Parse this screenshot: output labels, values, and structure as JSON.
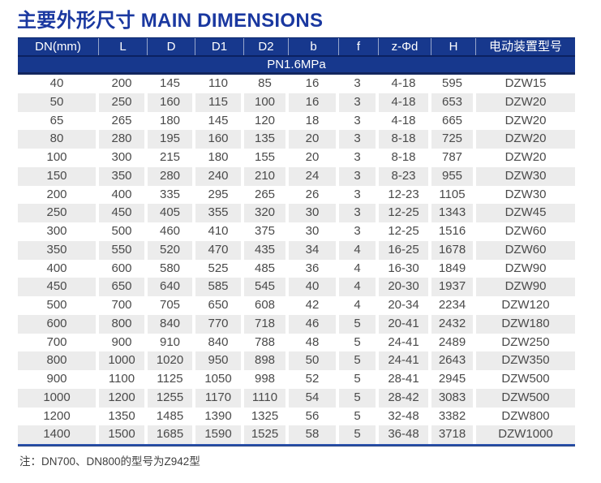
{
  "title": "主要外形尺寸 MAIN DIMENSIONS",
  "table": {
    "columns": [
      "DN(mm)",
      "L",
      "D",
      "D1",
      "D2",
      "b",
      "f",
      "z-Φd",
      "H",
      "电动装置型号"
    ],
    "subheader": "PN1.6MPa",
    "rows": [
      [
        "40",
        "200",
        "145",
        "110",
        "85",
        "16",
        "3",
        "4-18",
        "595",
        "DZW15"
      ],
      [
        "50",
        "250",
        "160",
        "115",
        "100",
        "16",
        "3",
        "4-18",
        "653",
        "DZW20"
      ],
      [
        "65",
        "265",
        "180",
        "145",
        "120",
        "18",
        "3",
        "4-18",
        "665",
        "DZW20"
      ],
      [
        "80",
        "280",
        "195",
        "160",
        "135",
        "20",
        "3",
        "8-18",
        "725",
        "DZW20"
      ],
      [
        "100",
        "300",
        "215",
        "180",
        "155",
        "20",
        "3",
        "8-18",
        "787",
        "DZW20"
      ],
      [
        "150",
        "350",
        "280",
        "240",
        "210",
        "24",
        "3",
        "8-23",
        "955",
        "DZW30"
      ],
      [
        "200",
        "400",
        "335",
        "295",
        "265",
        "26",
        "3",
        "12-23",
        "1105",
        "DZW30"
      ],
      [
        "250",
        "450",
        "405",
        "355",
        "320",
        "30",
        "3",
        "12-25",
        "1343",
        "DZW45"
      ],
      [
        "300",
        "500",
        "460",
        "410",
        "375",
        "30",
        "3",
        "12-25",
        "1516",
        "DZW60"
      ],
      [
        "350",
        "550",
        "520",
        "470",
        "435",
        "34",
        "4",
        "16-25",
        "1678",
        "DZW60"
      ],
      [
        "400",
        "600",
        "580",
        "525",
        "485",
        "36",
        "4",
        "16-30",
        "1849",
        "DZW90"
      ],
      [
        "450",
        "650",
        "640",
        "585",
        "545",
        "40",
        "4",
        "20-30",
        "1937",
        "DZW90"
      ],
      [
        "500",
        "700",
        "705",
        "650",
        "608",
        "42",
        "4",
        "20-34",
        "2234",
        "DZW120"
      ],
      [
        "600",
        "800",
        "840",
        "770",
        "718",
        "46",
        "5",
        "20-41",
        "2432",
        "DZW180"
      ],
      [
        "700",
        "900",
        "910",
        "840",
        "788",
        "48",
        "5",
        "24-41",
        "2489",
        "DZW250"
      ],
      [
        "800",
        "1000",
        "1020",
        "950",
        "898",
        "50",
        "5",
        "24-41",
        "2643",
        "DZW350"
      ],
      [
        "900",
        "1100",
        "1125",
        "1050",
        "998",
        "52",
        "5",
        "28-41",
        "2945",
        "DZW500"
      ],
      [
        "1000",
        "1200",
        "1255",
        "1170",
        "1110",
        "54",
        "5",
        "28-42",
        "3083",
        "DZW500"
      ],
      [
        "1200",
        "1350",
        "1485",
        "1390",
        "1325",
        "56",
        "5",
        "32-48",
        "3382",
        "DZW800"
      ],
      [
        "1400",
        "1500",
        "1685",
        "1590",
        "1525",
        "58",
        "5",
        "36-48",
        "3718",
        "DZW1000"
      ]
    ]
  },
  "footnote": "注：DN700、DN800的型号为Z942型",
  "colors": {
    "header_bg": "#17388d",
    "title": "#1a38a0",
    "stripe": "#ececec",
    "cell_text": "#4a4a4a",
    "divider_dark": "#0b2161",
    "bottom_line": "#2b52ad"
  }
}
